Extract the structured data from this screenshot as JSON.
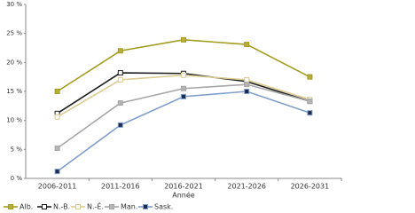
{
  "chart_data": {
    "type": "line",
    "x_label": "Année",
    "categories": [
      "2006-2011",
      "2011-2016",
      "2016-2021",
      "2021-2026",
      "2026-2031"
    ],
    "series": [
      {
        "name": "Alb.",
        "color": "#a39c1f",
        "marker_fill": "#b8ad3a",
        "values": [
          15.0,
          22.0,
          23.9,
          23.1,
          17.5
        ]
      },
      {
        "name": "N.-B.",
        "color": "#1c1c1c",
        "marker_fill": "#ffffff",
        "values": [
          11.2,
          18.2,
          18.1,
          16.7,
          13.3
        ]
      },
      {
        "name": "N.-É.",
        "color": "#dccb92",
        "marker_fill": "#ffffff",
        "values": [
          10.6,
          17.0,
          17.8,
          17.0,
          13.6
        ]
      },
      {
        "name": "Man.",
        "color": "#a6a6a6",
        "marker_fill": "#b4b4b4",
        "values": [
          5.2,
          13.0,
          15.5,
          16.2,
          13.3
        ]
      },
      {
        "name": "Sask.",
        "color": "#7f9ecb",
        "marker_fill": "#1b2a4e",
        "values": [
          1.2,
          9.2,
          14.1,
          15.0,
          11.3
        ]
      }
    ],
    "ylim": [
      0,
      30
    ],
    "yticks": [
      {
        "value": 0,
        "label": "0 %"
      },
      {
        "value": 5,
        "label": "5 %"
      },
      {
        "value": 10,
        "label": "10 %"
      },
      {
        "value": 15,
        "label": "15 %"
      },
      {
        "value": 20,
        "label": "20 %"
      },
      {
        "value": 25,
        "label": "25 %"
      },
      {
        "value": 30,
        "label": "30 %"
      }
    ],
    "grid": false,
    "legend_position": "bottom-left"
  }
}
